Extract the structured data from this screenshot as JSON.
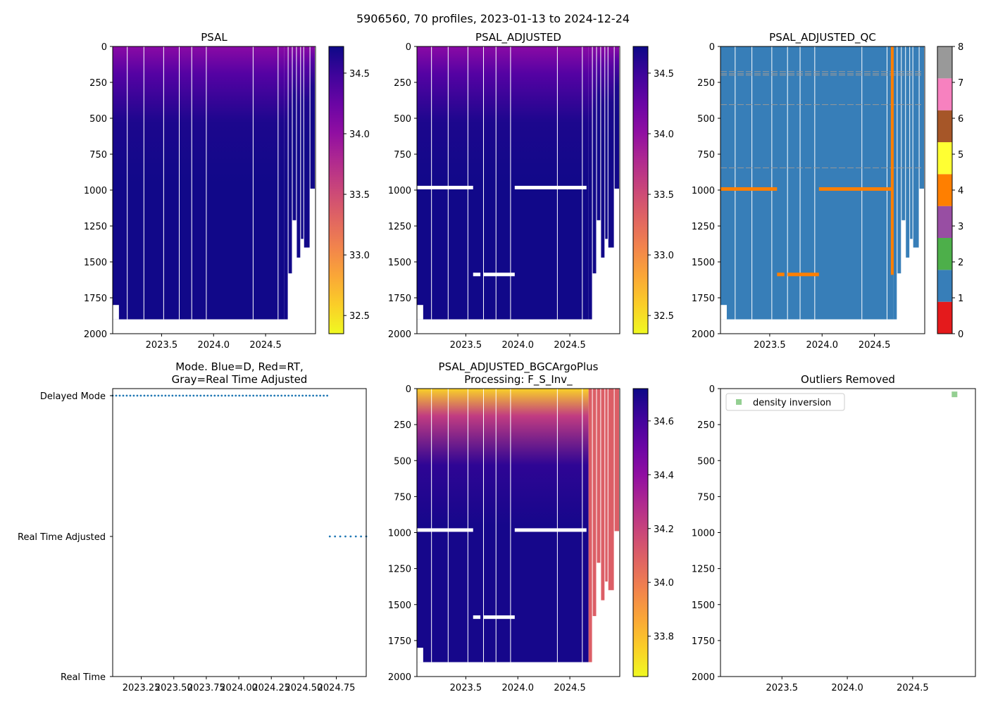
{
  "suptitle": "5906560, 70 profiles, 2023-01-13 to 2024-12-24",
  "colors": {
    "nan": "#ffffff",
    "qc": [
      "#e41a1c",
      "#377eb8",
      "#4daf4a",
      "#984ea3",
      "#ff7f00",
      "#ffff33",
      "#a65628",
      "#f781bf",
      "#999999"
    ],
    "mode_line": "#1f77b4",
    "outlier": "#4daf4a"
  },
  "chart_data": [
    {
      "id": "psal",
      "type": "heatmap",
      "title": "PSAL",
      "colormap": "plasma_r",
      "xlim": [
        2023.03,
        2024.98
      ],
      "ylim": [
        2000,
        0
      ],
      "yticks": [
        "0",
        "250",
        "500",
        "750",
        "1000",
        "1250",
        "1500",
        "1750",
        "2000"
      ],
      "ytick_values": [
        0,
        250,
        500,
        750,
        1000,
        1250,
        1500,
        1750,
        2000
      ],
      "xticks": [
        "2023.5",
        "2024.0",
        "2024.5"
      ],
      "xtick_values": [
        2023.5,
        2024.0,
        2024.5
      ],
      "clim": [
        32.35,
        34.72
      ],
      "colorbar_ticks": [
        "32.5",
        "33.0",
        "33.5",
        "34.0",
        "34.5"
      ],
      "colorbar_tick_values": [
        32.5,
        33.0,
        33.5,
        34.0,
        34.5
      ],
      "surface_value": 34.05,
      "deep_value": 34.7,
      "max_depth": 1900,
      "gaps": [
        2023.17,
        2023.33,
        2023.52,
        2023.67,
        2023.79,
        2023.93,
        2024.38,
        2024.62
      ],
      "end_depths": [
        [
          2023.03,
          1800
        ],
        [
          2024.68,
          1900
        ],
        [
          2024.72,
          1580
        ],
        [
          2024.76,
          1210
        ],
        [
          2024.8,
          1470
        ],
        [
          2024.84,
          1340
        ],
        [
          2024.87,
          1400
        ],
        [
          2024.93,
          990
        ]
      ]
    },
    {
      "id": "psal-adjusted",
      "type": "heatmap",
      "title": "PSAL_ADJUSTED",
      "colormap": "plasma_r",
      "xlim": [
        2023.03,
        2024.98
      ],
      "ylim": [
        2000,
        0
      ],
      "yticks": [
        "0",
        "250",
        "500",
        "750",
        "1000",
        "1250",
        "1500",
        "1750",
        "2000"
      ],
      "ytick_values": [
        0,
        250,
        500,
        750,
        1000,
        1250,
        1500,
        1750,
        2000
      ],
      "xticks": [
        "2023.5",
        "2024.0",
        "2024.5"
      ],
      "xtick_values": [
        2023.5,
        2024.0,
        2024.5
      ],
      "clim": [
        32.35,
        34.72
      ],
      "colorbar_ticks": [
        "32.5",
        "33.0",
        "33.5",
        "34.0",
        "34.5"
      ],
      "colorbar_tick_values": [
        32.5,
        33.0,
        33.5,
        34.0,
        34.5
      ],
      "surface_value": 34.05,
      "deep_value": 34.7,
      "max_depth": 1900,
      "gaps": [
        2023.17,
        2023.33,
        2023.52,
        2023.67,
        2023.79,
        2023.93,
        2024.38,
        2024.62
      ],
      "nan_bands": [
        [
          2023.03,
          2023.57,
          980
        ],
        [
          2023.97,
          2024.66,
          980
        ],
        [
          2023.57,
          2023.64,
          1585
        ],
        [
          2023.67,
          2023.97,
          1585
        ]
      ],
      "end_depths": [
        [
          2023.03,
          1800
        ],
        [
          2024.68,
          1900
        ],
        [
          2024.72,
          1580
        ],
        [
          2024.76,
          1210
        ],
        [
          2024.8,
          1470
        ],
        [
          2024.84,
          1340
        ],
        [
          2024.87,
          1400
        ],
        [
          2024.93,
          990
        ]
      ]
    },
    {
      "id": "psal-adjusted-qc",
      "type": "heatmap",
      "title": "PSAL_ADJUSTED_QC",
      "colormap": "qc",
      "xlim": [
        2023.03,
        2024.98
      ],
      "ylim": [
        2000,
        0
      ],
      "yticks": [
        "0",
        "250",
        "500",
        "750",
        "1000",
        "1250",
        "1500",
        "1750",
        "2000"
      ],
      "ytick_values": [
        0,
        250,
        500,
        750,
        1000,
        1250,
        1500,
        1750,
        2000
      ],
      "xticks": [
        "2023.5",
        "2024.0",
        "2024.5"
      ],
      "xtick_values": [
        2023.5,
        2024.0,
        2024.5
      ],
      "colorbar_ticks": [
        "0",
        "1",
        "2",
        "3",
        "4",
        "5",
        "6",
        "7",
        "8"
      ],
      "colorbar_tick_values": [
        0,
        1,
        2,
        3,
        4,
        5,
        6,
        7,
        8
      ],
      "base_flag": 1,
      "max_depth": 1900,
      "gaps": [
        2023.17,
        2023.33,
        2023.52,
        2023.67,
        2023.79,
        2023.93,
        2024.38,
        2024.62
      ],
      "flag4_segments": [
        [
          2023.03,
          2023.57,
          990
        ],
        [
          2023.97,
          2024.66,
          990
        ],
        [
          2023.57,
          2023.64,
          1585
        ],
        [
          2023.67,
          2023.97,
          1585
        ]
      ],
      "flag4_column": [
        2024.67,
        0,
        1590
      ],
      "flag8_depths": [
        175,
        190,
        200,
        405,
        845
      ],
      "end_depths": [
        [
          2023.03,
          1800
        ],
        [
          2024.68,
          1900
        ],
        [
          2024.72,
          1580
        ],
        [
          2024.76,
          1210
        ],
        [
          2024.8,
          1470
        ],
        [
          2024.84,
          1340
        ],
        [
          2024.87,
          1400
        ],
        [
          2024.93,
          990
        ]
      ]
    },
    {
      "id": "mode",
      "type": "scatter",
      "title": "Mode. Blue=D, Red=RT,",
      "title_line2": "Gray=Real Time Adjusted",
      "xlim": [
        2023.03,
        2024.98
      ],
      "xticks": [
        "2023.25",
        "2023.50",
        "2023.75",
        "2024.00",
        "2024.25",
        "2024.50",
        "2024.75"
      ],
      "xtick_values": [
        2023.25,
        2023.5,
        2023.75,
        2024.0,
        2024.25,
        2024.5,
        2024.75
      ],
      "ycategories": [
        "Delayed Mode",
        "Real Time Adjusted",
        "Real Time"
      ],
      "series": [
        {
          "name": "Delayed Mode",
          "x_range": [
            2023.03,
            2024.68
          ],
          "count": 62
        },
        {
          "name": "Real Time Adjusted",
          "x_range": [
            2024.7,
            2024.98
          ],
          "count": 8
        }
      ]
    },
    {
      "id": "psal-bgc",
      "type": "heatmap",
      "title": "PSAL_ADJUSTED_BGCArgoPlus",
      "title_line2": "Processing: F_S_Inv_",
      "colormap": "plasma_r",
      "xlim": [
        2023.03,
        2024.98
      ],
      "ylim": [
        2000,
        0
      ],
      "yticks": [
        "0",
        "250",
        "500",
        "750",
        "1000",
        "1250",
        "1500",
        "1750",
        "2000"
      ],
      "ytick_values": [
        0,
        250,
        500,
        750,
        1000,
        1250,
        1500,
        1750,
        2000
      ],
      "xticks": [
        "2023.5",
        "2024.0",
        "2024.5"
      ],
      "xtick_values": [
        2023.5,
        2024.0,
        2024.5
      ],
      "clim": [
        33.65,
        34.72
      ],
      "colorbar_ticks": [
        "33.8",
        "34.0",
        "34.2",
        "34.4",
        "34.6"
      ],
      "colorbar_tick_values": [
        33.8,
        34.0,
        34.2,
        34.4,
        34.6
      ],
      "surface_value": 33.75,
      "deep_value": 34.7,
      "tail_value": 34.1,
      "max_depth": 1900,
      "gaps": [
        2023.17,
        2023.33,
        2023.52,
        2023.67,
        2023.79,
        2023.93,
        2024.38,
        2024.62
      ],
      "nan_bands": [
        [
          2023.03,
          2023.57,
          980
        ],
        [
          2023.97,
          2024.66,
          980
        ],
        [
          2023.57,
          2023.64,
          1585
        ],
        [
          2023.67,
          2023.97,
          1585
        ]
      ],
      "end_depths": [
        [
          2023.03,
          1800
        ],
        [
          2024.68,
          1900
        ],
        [
          2024.72,
          1580
        ],
        [
          2024.76,
          1210
        ],
        [
          2024.8,
          1470
        ],
        [
          2024.84,
          1340
        ],
        [
          2024.87,
          1400
        ],
        [
          2024.93,
          990
        ]
      ]
    },
    {
      "id": "outliers",
      "type": "scatter",
      "title": "Outliers Removed",
      "xlim": [
        2023.03,
        2024.98
      ],
      "ylim": [
        2000,
        0
      ],
      "yticks": [
        "0",
        "250",
        "500",
        "750",
        "1000",
        "1250",
        "1500",
        "1750",
        "2000"
      ],
      "ytick_values": [
        0,
        250,
        500,
        750,
        1000,
        1250,
        1500,
        1750,
        2000
      ],
      "xticks": [
        "2023.5",
        "2024.0",
        "2024.5"
      ],
      "xtick_values": [
        2023.5,
        2024.0,
        2024.5
      ],
      "legend": {
        "label": "density inversion",
        "placement": "top-left"
      },
      "points": [
        {
          "x": 2024.82,
          "y": 40
        }
      ]
    }
  ]
}
